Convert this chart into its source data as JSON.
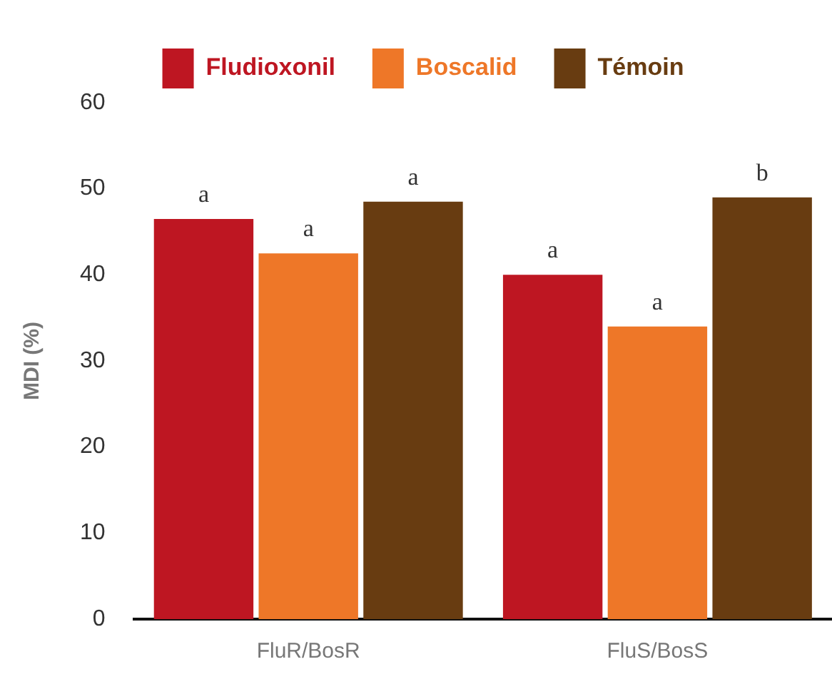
{
  "chart_data": {
    "type": "bar",
    "ylabel": "MDI (%)",
    "categories": [
      "FluR/BosR",
      "FluS/BosS"
    ],
    "series": [
      {
        "name": "Fludioxonil",
        "color": "#be1622",
        "values": [
          46.5,
          40
        ],
        "value_labels": [
          "a",
          "a"
        ]
      },
      {
        "name": "Boscalid",
        "color": "#ee7728",
        "values": [
          42.5,
          34
        ],
        "value_labels": [
          "a",
          "a"
        ]
      },
      {
        "name": "Témoin",
        "color": "#683c11",
        "values": [
          48.5,
          49
        ],
        "value_labels": [
          "a",
          "b"
        ]
      }
    ],
    "ylim": [
      0,
      60
    ],
    "yticks": [
      0,
      10,
      20,
      30,
      40,
      50,
      60
    ],
    "grid": false,
    "legend": "top"
  }
}
